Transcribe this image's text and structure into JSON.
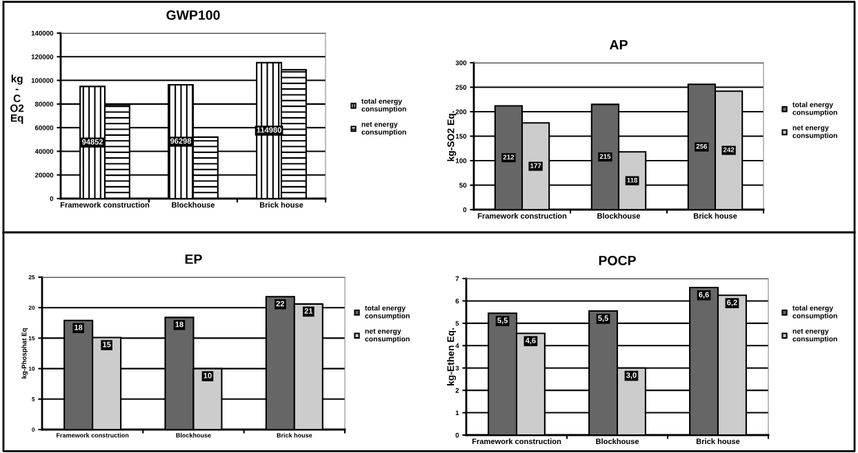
{
  "chart_data": [
    {
      "type": "bar",
      "title": "GWP100",
      "ylabel": "kg\n-\nC\nO2\nEq",
      "categories": [
        "Framework construction",
        "Blockhouse",
        "Brick house"
      ],
      "series": [
        {
          "name": "total energy consumption",
          "color": "#000000",
          "values": [
            94852,
            96298,
            114980
          ],
          "value_labels": [
            "94852",
            "96298",
            "114980"
          ]
        },
        {
          "name": "net energy consumption",
          "color": "#000000",
          "values": [
            79500,
            52000,
            109000
          ],
          "value_labels": [
            null,
            null,
            null
          ]
        }
      ],
      "ylim": [
        0,
        140000
      ],
      "yticks": [
        0,
        20000,
        40000,
        60000,
        80000,
        100000,
        120000,
        140000
      ],
      "grid": "y",
      "legend": "right"
    },
    {
      "type": "bar",
      "title": "AP",
      "ylabel": "kg-SO2 Eq.",
      "categories": [
        "Framework construction",
        "Blockhouse",
        "Brick house"
      ],
      "series": [
        {
          "name": "total energy consumption",
          "color": "#666666",
          "values": [
            212,
            215,
            256
          ]
        },
        {
          "name": "net energy consumption",
          "color": "#cccccc",
          "values": [
            177,
            118,
            242
          ]
        }
      ],
      "data_labels": true,
      "ylim": [
        0,
        300
      ],
      "yticks": [
        0,
        50,
        100,
        150,
        200,
        250,
        300
      ],
      "grid": "y",
      "legend": "right"
    },
    {
      "type": "bar",
      "title": "EP",
      "ylabel": "kg-Phosphat Eq",
      "categories": [
        "Framework construction",
        "Blockhouse",
        "Brick house"
      ],
      "series": [
        {
          "name": "total energy consumption",
          "color": "#666666",
          "values": [
            17.9,
            18.4,
            21.8
          ],
          "value_labels": [
            "18",
            "18",
            "22"
          ]
        },
        {
          "name": "net energy consumption",
          "color": "#cccccc",
          "values": [
            15.1,
            10.0,
            20.6
          ],
          "value_labels": [
            "15",
            "10",
            "21"
          ]
        }
      ],
      "ylim": [
        0,
        25
      ],
      "yticks": [
        0,
        5,
        10,
        15,
        20,
        25
      ],
      "grid": "y",
      "legend": "right"
    },
    {
      "type": "bar",
      "title": "POCP",
      "ylabel": "kg-Ethen Eq.",
      "categories": [
        "Framework construction",
        "Blockhouse",
        "Brick house"
      ],
      "series": [
        {
          "name": "total energy consumption",
          "color": "#666666",
          "values": [
            5.45,
            5.55,
            6.6
          ],
          "value_labels": [
            "5,5",
            "5,5",
            "6,6"
          ]
        },
        {
          "name": "net energy consumption",
          "color": "#cccccc",
          "values": [
            4.55,
            3.0,
            6.25
          ],
          "value_labels": [
            "4,6",
            "3,0",
            "6,2"
          ]
        }
      ],
      "ylim": [
        0,
        7
      ],
      "yticks": [
        0,
        1,
        2,
        3,
        4,
        5,
        6,
        7
      ],
      "grid": "y",
      "legend": "right"
    }
  ]
}
